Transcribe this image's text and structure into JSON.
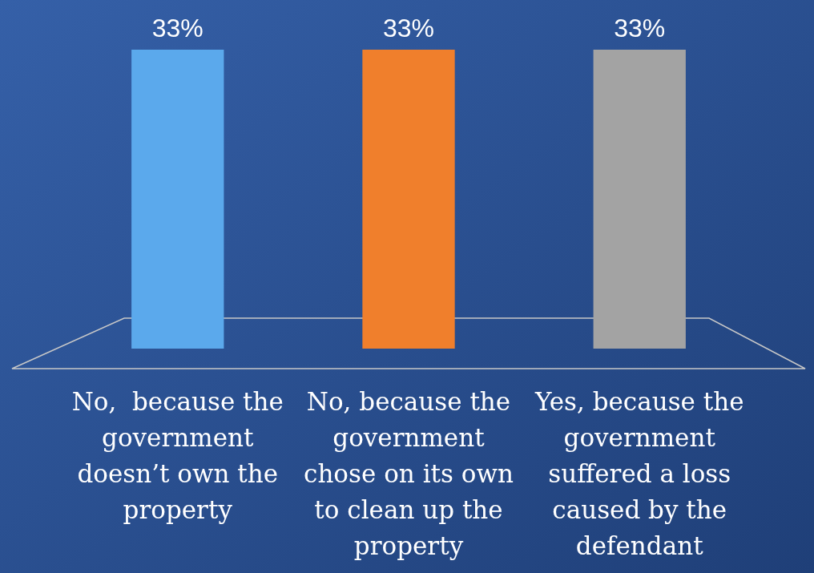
{
  "chart_data": {
    "type": "bar",
    "categories": [
      "No,  because the government doesn’t own the property",
      "No, because the government chose on its own to clean up the property",
      "Yes, because the government suffered a loss caused by the defendant"
    ],
    "values": [
      33,
      33,
      33
    ],
    "colors": [
      "#5ba9ec",
      "#f07f2c",
      "#a3a3a3"
    ],
    "value_labels": [
      "33%",
      "33%",
      "33%"
    ],
    "ylim": [
      0,
      33
    ],
    "tick_labels": "x"
  }
}
